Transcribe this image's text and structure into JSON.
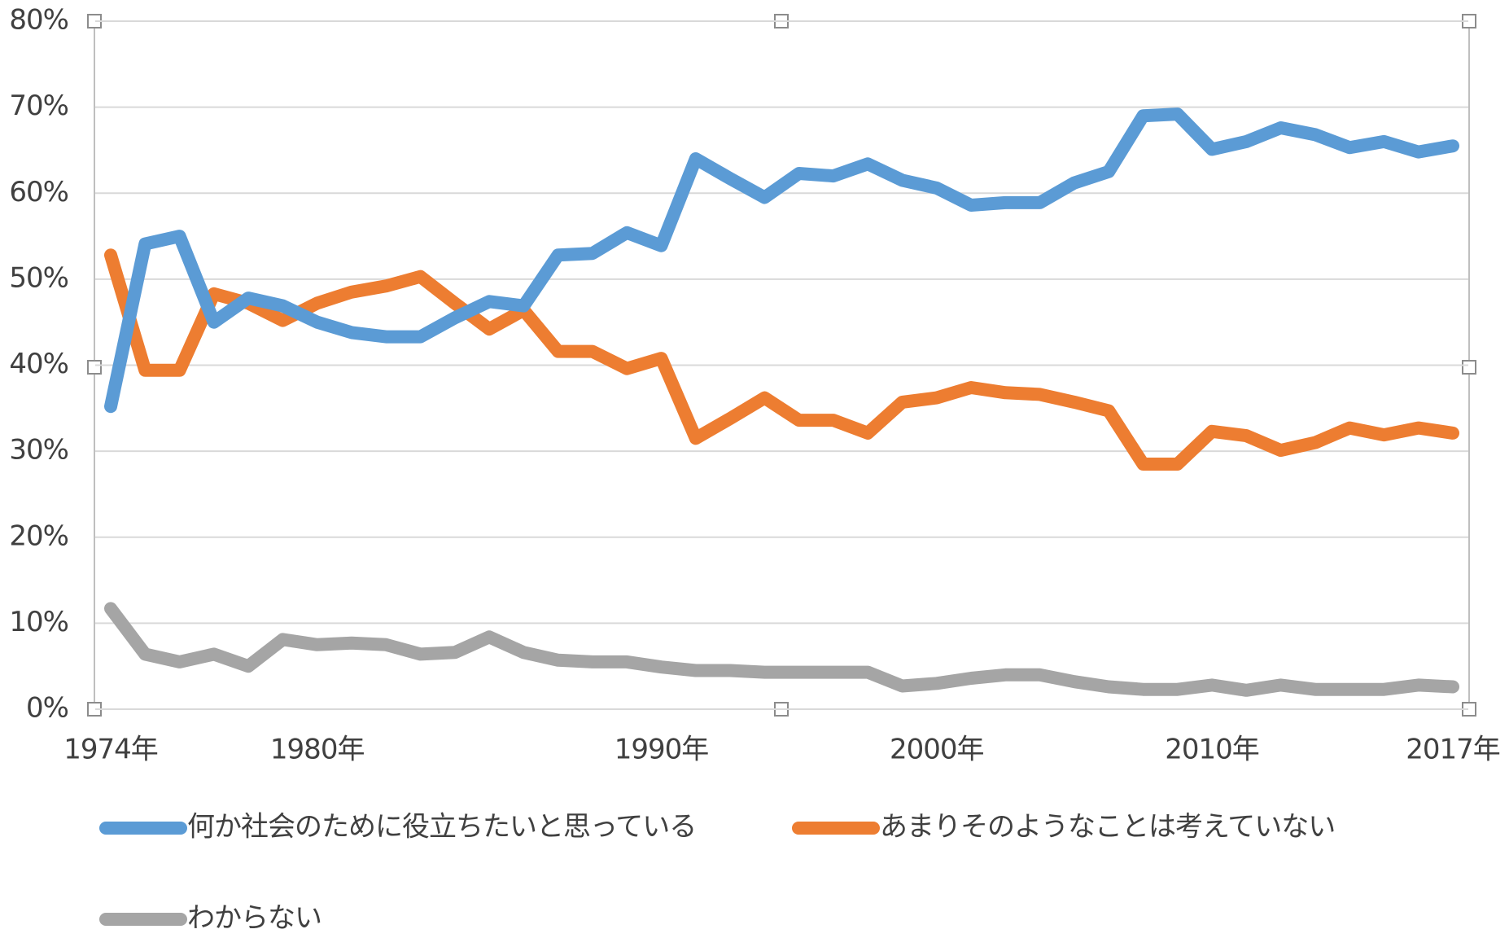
{
  "chart_data": {
    "type": "line",
    "categories": [
      "1974年",
      null,
      null,
      null,
      null,
      null,
      "1980年",
      null,
      null,
      null,
      null,
      null,
      null,
      null,
      null,
      null,
      "1990年",
      null,
      null,
      null,
      null,
      null,
      null,
      null,
      "2000年",
      null,
      null,
      null,
      null,
      null,
      null,
      null,
      "2010年",
      null,
      null,
      null,
      null,
      null,
      null,
      "2017年"
    ],
    "series": [
      {
        "name": "何か社会のために役立ちたいと思っている",
        "color": "#5b9bd5",
        "values": [
          35.2,
          54.1,
          55.0,
          45.0,
          47.8,
          46.9,
          45.0,
          43.8,
          43.3,
          43.3,
          45.5,
          47.4,
          46.9,
          52.8,
          53.0,
          55.4,
          53.9,
          64.0,
          61.7,
          59.5,
          62.3,
          62.0,
          63.4,
          61.5,
          60.6,
          58.6,
          58.9,
          58.9,
          61.2,
          62.5,
          69.0,
          69.2,
          65.1,
          66.0,
          67.6,
          66.8,
          65.3,
          66.0,
          64.8,
          65.5
        ]
      },
      {
        "name": "あまりそのようなことは考えていない",
        "color": "#ed7d31",
        "values": [
          52.8,
          39.4,
          39.4,
          48.3,
          47.2,
          45.2,
          47.2,
          48.5,
          49.2,
          50.3,
          47.2,
          44.2,
          46.4,
          41.6,
          41.6,
          39.6,
          40.8,
          31.5,
          33.8,
          36.2,
          33.6,
          33.6,
          32.1,
          35.7,
          36.2,
          37.4,
          36.8,
          36.6,
          35.7,
          34.7,
          28.5,
          28.5,
          32.3,
          31.8,
          30.1,
          31.0,
          32.7,
          31.9,
          32.7,
          32.1
        ]
      },
      {
        "name": "わからない",
        "color": "#a5a5a5",
        "values": [
          11.7,
          6.4,
          5.5,
          6.4,
          5.0,
          8.1,
          7.5,
          7.7,
          7.5,
          6.4,
          6.6,
          8.4,
          6.6,
          5.7,
          5.5,
          5.5,
          4.9,
          4.5,
          4.5,
          4.3,
          4.3,
          4.3,
          4.3,
          2.7,
          3.0,
          3.6,
          4.0,
          4.0,
          3.2,
          2.6,
          2.3,
          2.3,
          2.8,
          2.2,
          2.8,
          2.3,
          2.3,
          2.3,
          2.8,
          2.6
        ]
      }
    ],
    "ylim": [
      0,
      80
    ],
    "yticks": [
      {
        "value": 0,
        "label": "0%"
      },
      {
        "value": 10,
        "label": "10%"
      },
      {
        "value": 20,
        "label": "20%"
      },
      {
        "value": 30,
        "label": "30%"
      },
      {
        "value": 40,
        "label": "40%"
      },
      {
        "value": 50,
        "label": "50%"
      },
      {
        "value": 60,
        "label": "60%"
      },
      {
        "value": 70,
        "label": "70%"
      },
      {
        "value": 80,
        "label": "80%"
      }
    ],
    "grid": true
  }
}
